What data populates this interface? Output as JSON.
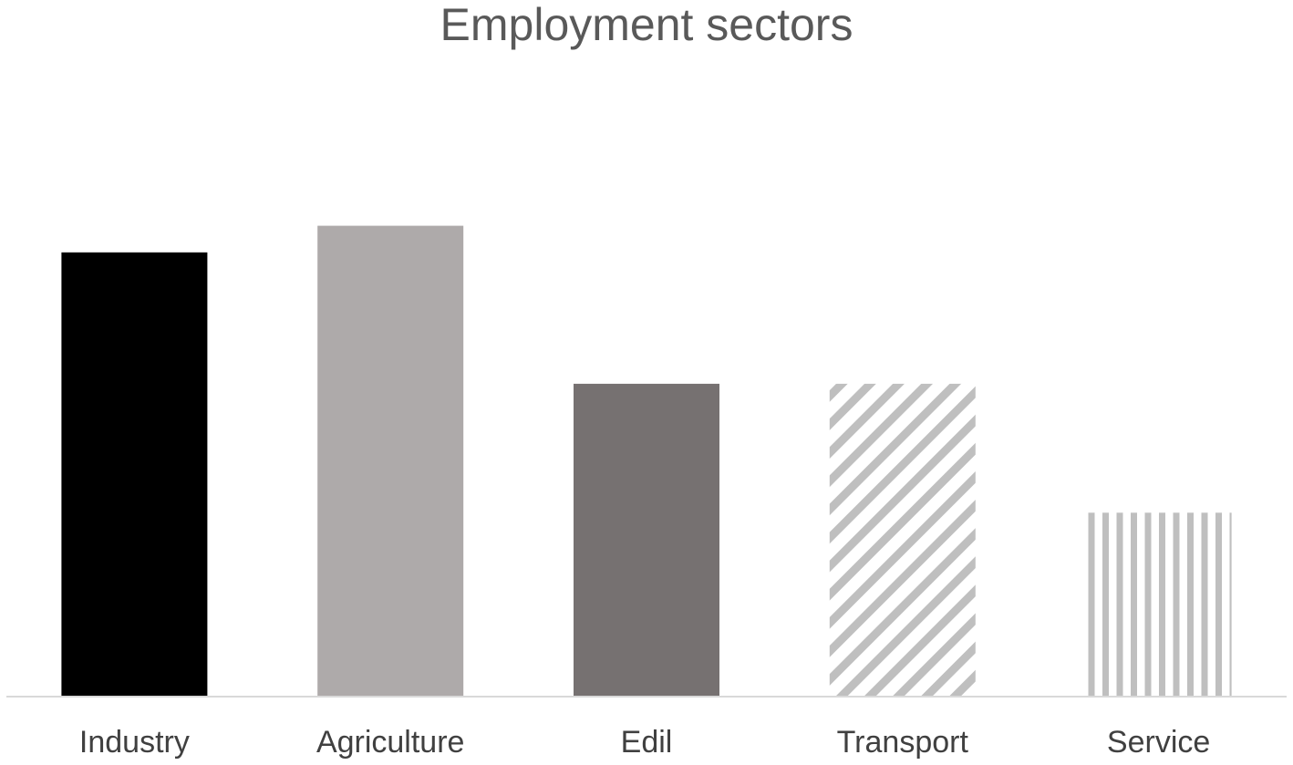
{
  "chart_data": {
    "type": "bar",
    "title": "Employment sectors",
    "xlabel": "",
    "ylabel": "",
    "categories": [
      "Industry",
      "Agriculture",
      "Edil",
      "Transport",
      "Service"
    ],
    "values": [
      5.5,
      5.83,
      3.87,
      3.87,
      2.27
    ],
    "ylim": [
      0,
      7.5
    ],
    "grid": false,
    "legend": "none",
    "bar_styles": [
      {
        "fill": "solid",
        "color": "#000000"
      },
      {
        "fill": "solid",
        "color": "#aeaaaa"
      },
      {
        "fill": "solid",
        "color": "#767171"
      },
      {
        "fill": "diagonal-stripes",
        "color": "#bfbfbf"
      },
      {
        "fill": "vertical-stripes",
        "color": "#bfbfbf"
      }
    ],
    "axis_color": "#d9d9d9"
  }
}
